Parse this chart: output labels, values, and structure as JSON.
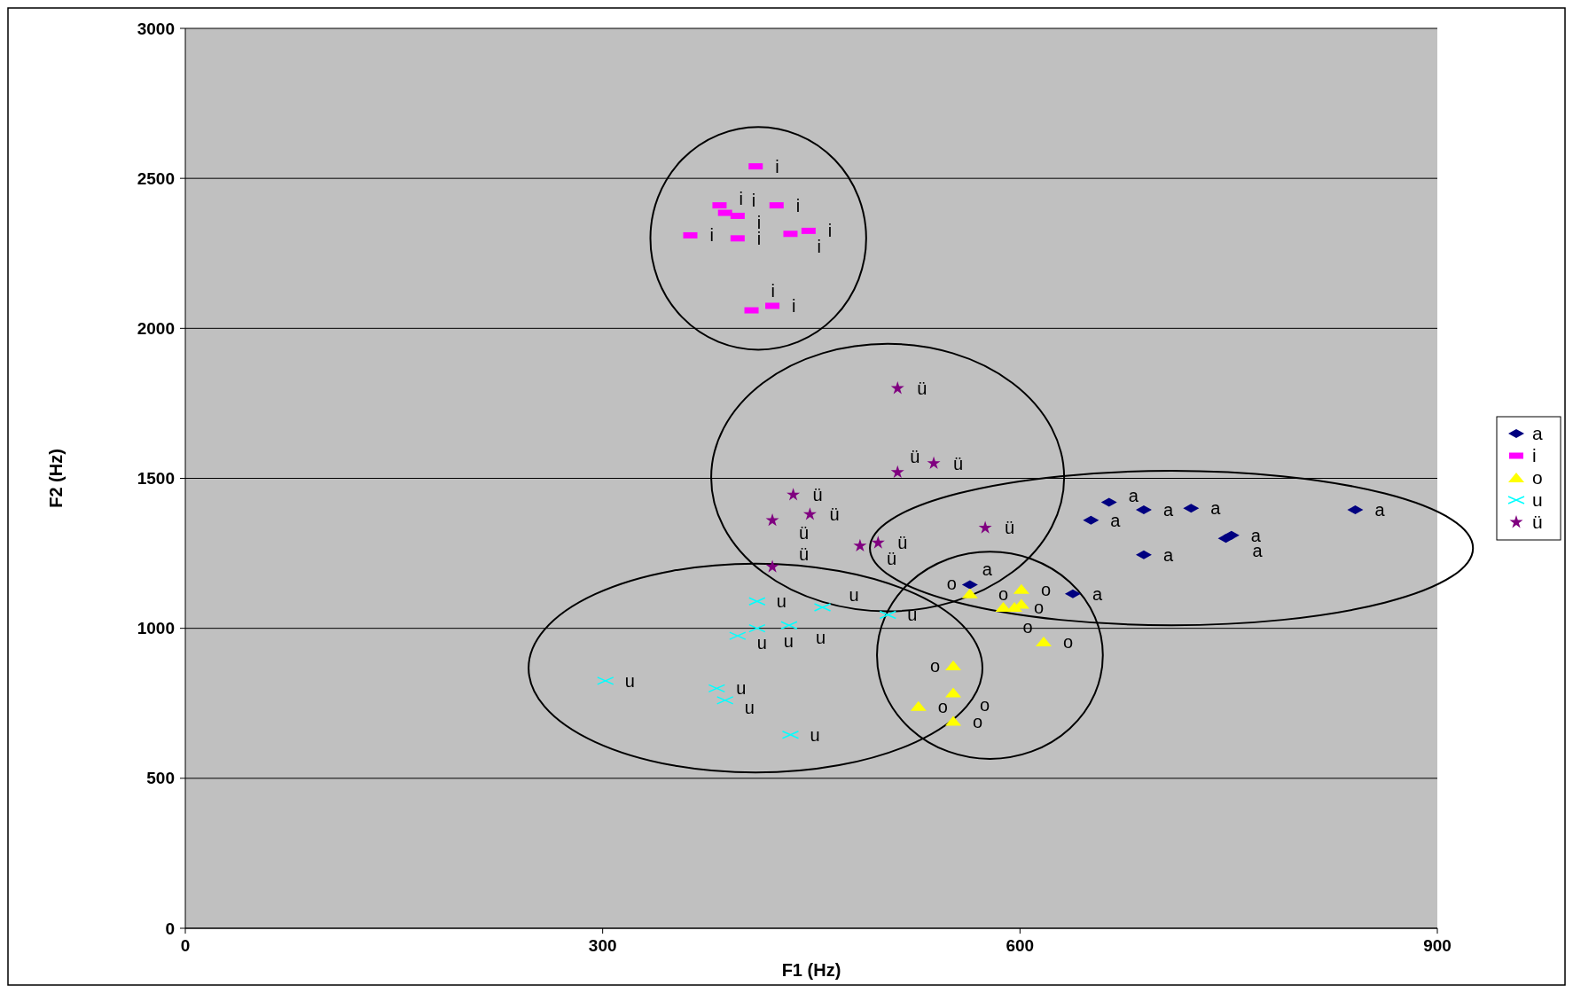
{
  "chart_data": {
    "type": "scatter",
    "xlabel": "F1 (Hz)",
    "ylabel": "F2 (Hz)",
    "xlim": [
      0,
      900
    ],
    "xticks": [
      0,
      300,
      600,
      900
    ],
    "ylim": [
      0,
      3000
    ],
    "yticks": [
      0,
      500,
      1000,
      1500,
      2000,
      2500,
      3000
    ],
    "grid": "y",
    "legend": "right",
    "series": [
      {
        "name": "a",
        "color": "#000080",
        "marker": "diamond",
        "x": [
          664,
          689,
          723,
          841,
          651,
          752,
          748,
          689,
          564,
          638
        ],
        "values": [
          1420,
          1395,
          1400,
          1395,
          1360,
          1310,
          1300,
          1245,
          1145,
          1115
        ],
        "value_labels": [
          "a",
          "a",
          "a",
          "a",
          "a",
          "a",
          "a",
          "a",
          "a",
          "a"
        ]
      },
      {
        "name": "i",
        "color": "#ff00ff",
        "marker": "square",
        "x": [
          410,
          384,
          388,
          397,
          425,
          363,
          397,
          435,
          448,
          407,
          422
        ],
        "values": [
          2540,
          2410,
          2385,
          2375,
          2410,
          2310,
          2300,
          2315,
          2325,
          2060,
          2075
        ],
        "value_labels": [
          "i",
          "i",
          "i",
          "i",
          "i",
          "i",
          "i",
          "i",
          "i",
          "i",
          "i"
        ]
      },
      {
        "name": "o",
        "color": "#ffff00",
        "marker": "triangle",
        "x": [
          564,
          601,
          588,
          596,
          601,
          617,
          552,
          552,
          527,
          552
        ],
        "values": [
          1115,
          1130,
          1070,
          1070,
          1080,
          955,
          875,
          785,
          740,
          690
        ],
        "value_labels": [
          "o",
          "o",
          "o",
          "o",
          "o",
          "o",
          "o",
          "o",
          "o",
          "o"
        ]
      },
      {
        "name": "u",
        "color": "#00ffff",
        "marker": "cross",
        "x": [
          411,
          458,
          505,
          434,
          411,
          397,
          302,
          382,
          388,
          435
        ],
        "values": [
          1090,
          1070,
          1045,
          1010,
          1000,
          975,
          825,
          800,
          760,
          645
        ],
        "value_labels": [
          "u",
          "u",
          "u",
          "u",
          "u",
          "u",
          "u",
          "u",
          "u",
          "u"
        ]
      },
      {
        "name": "ü",
        "color": "#800080",
        "marker": "star",
        "x": [
          512,
          538,
          512,
          437,
          449,
          422,
          485,
          498,
          575,
          422
        ],
        "values": [
          1800,
          1550,
          1520,
          1445,
          1380,
          1360,
          1275,
          1285,
          1335,
          1205
        ],
        "value_labels": [
          "ü",
          "ü",
          "ü",
          "ü",
          "ü",
          "ü",
          "ü",
          "ü",
          "ü",
          "ü"
        ]
      }
    ]
  }
}
